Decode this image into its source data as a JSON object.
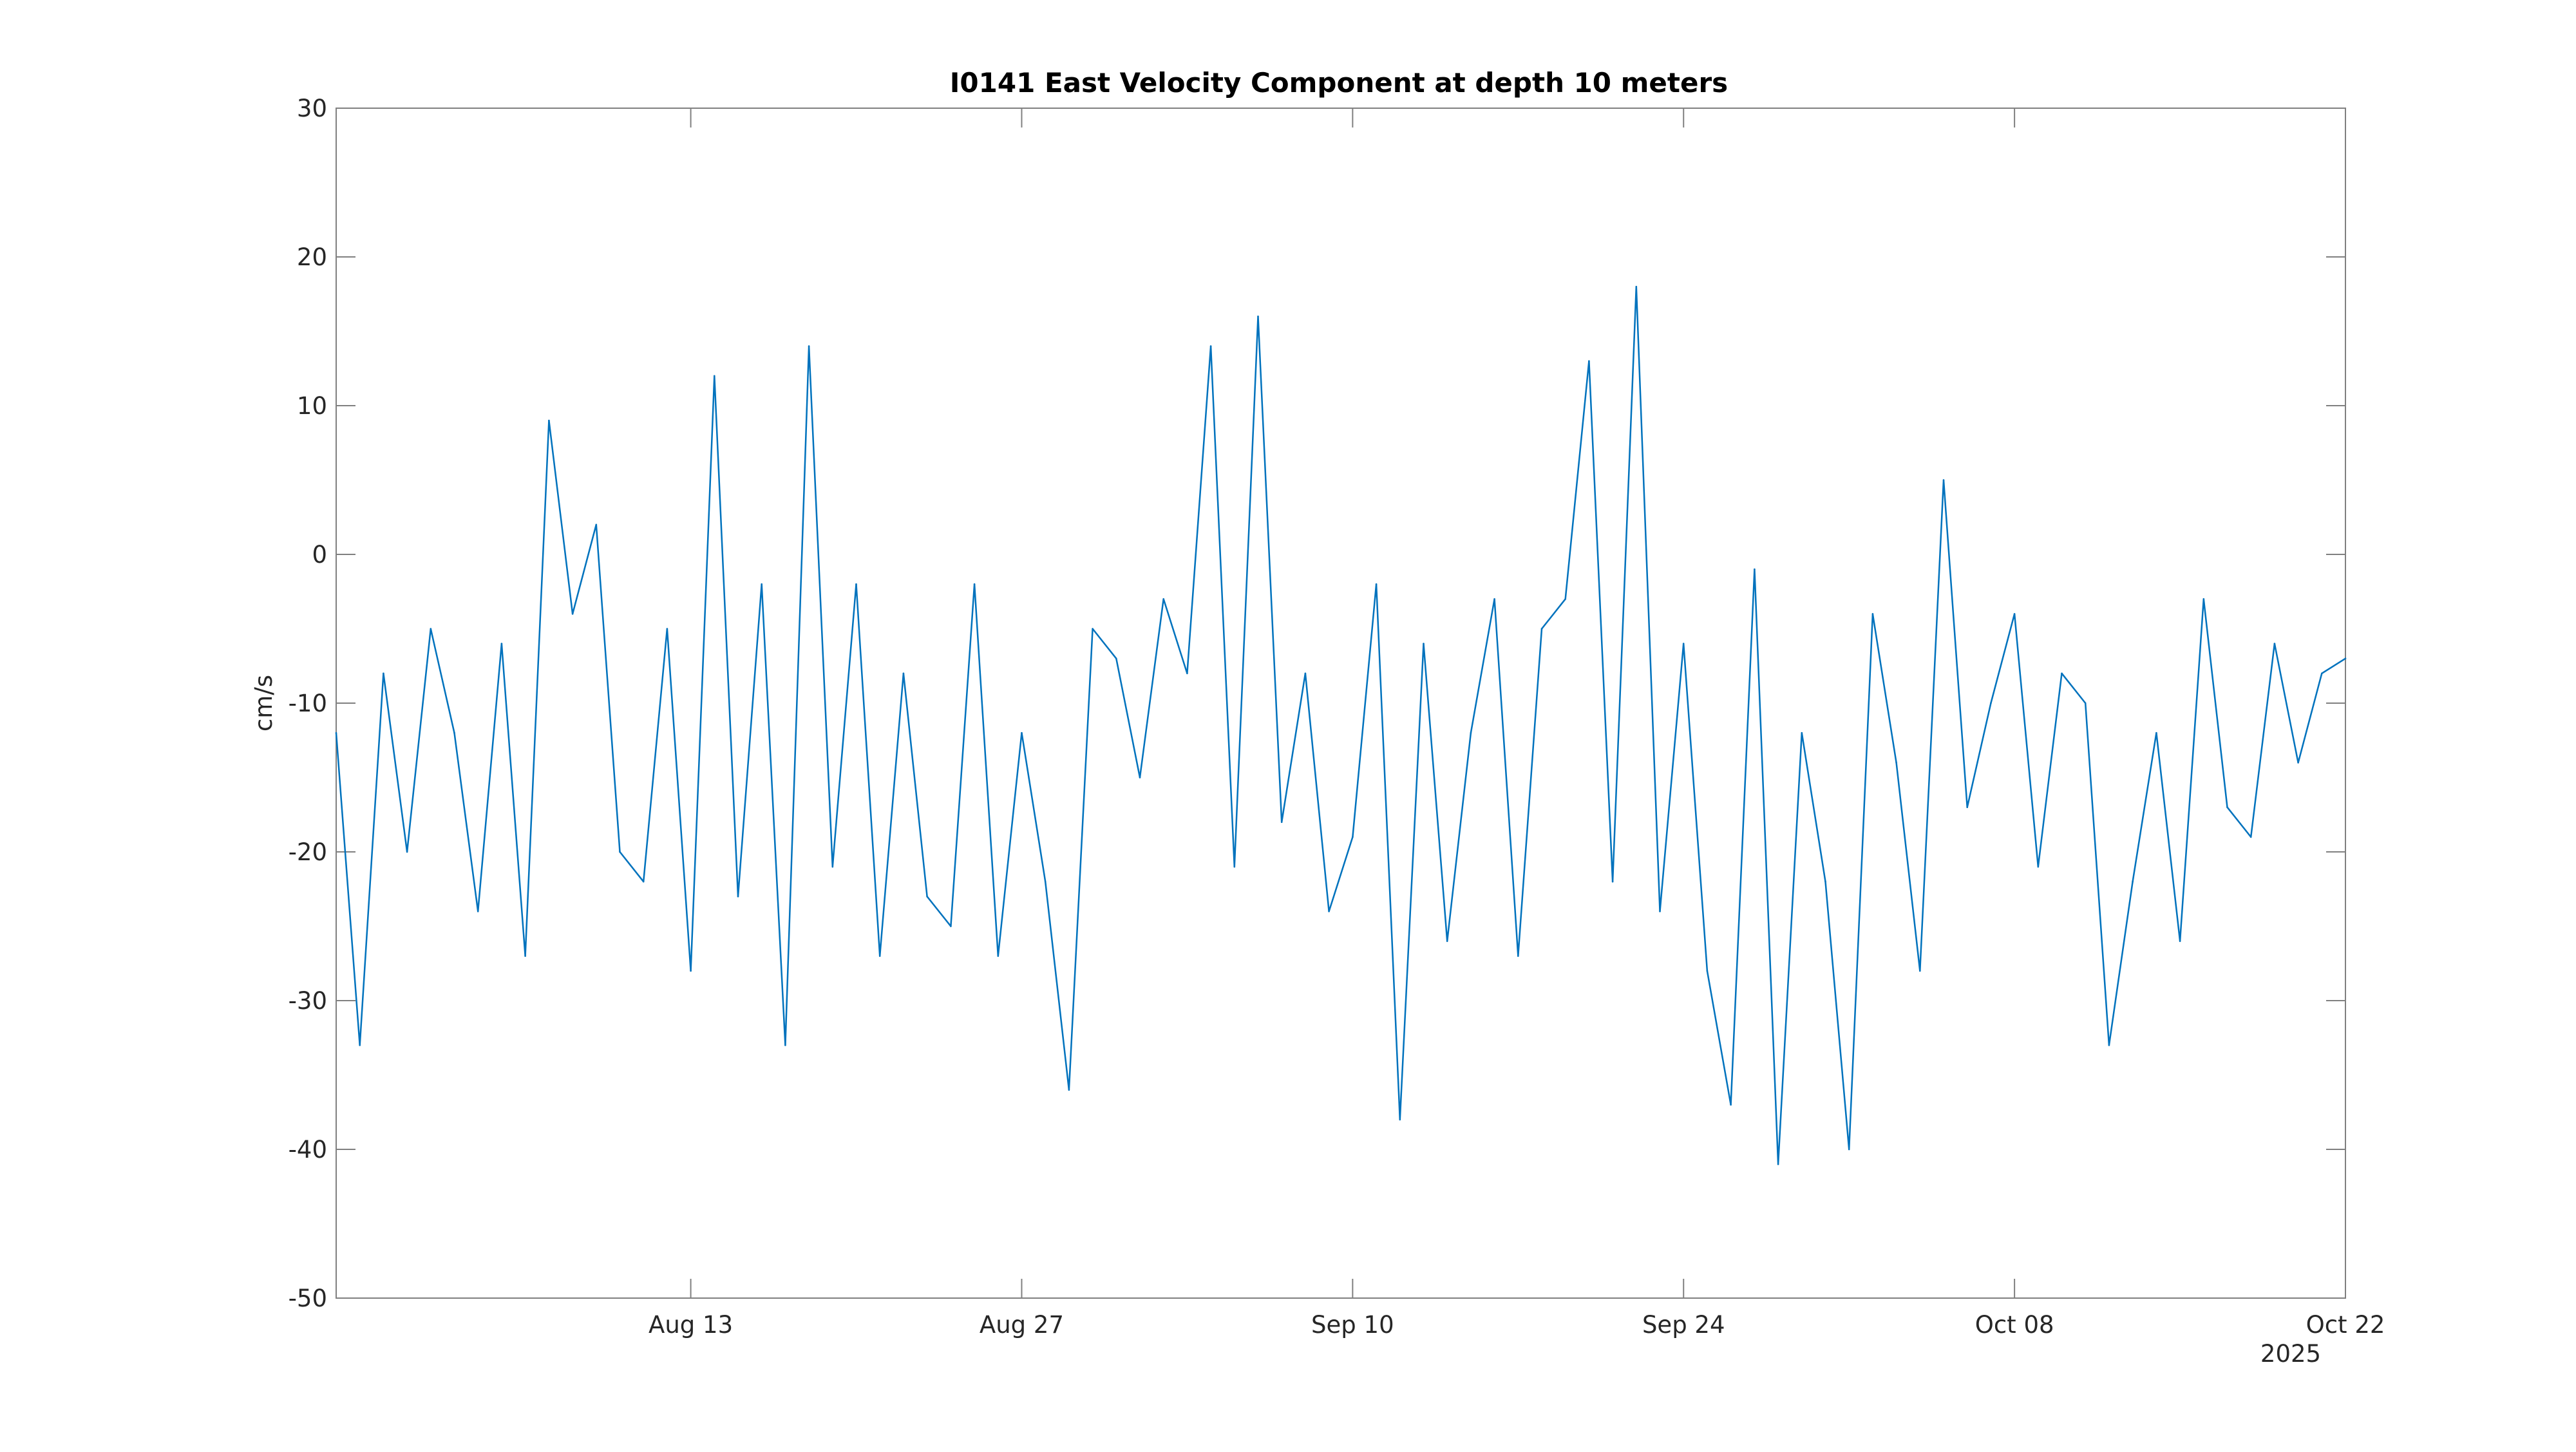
{
  "chart_data": {
    "type": "line",
    "title": "I0141 East Velocity Component at depth 10 meters",
    "xlabel": "",
    "ylabel": "cm/s",
    "xlim": [
      "2025-07-29",
      "2025-10-22"
    ],
    "ylim": [
      -50,
      30
    ],
    "x_ticks": [
      {
        "date": "2025-08-13",
        "label": "Aug 13"
      },
      {
        "date": "2025-08-27",
        "label": "Aug 27"
      },
      {
        "date": "2025-09-10",
        "label": "Sep 10"
      },
      {
        "date": "2025-09-24",
        "label": "Sep 24"
      },
      {
        "date": "2025-10-08",
        "label": "Oct 08"
      },
      {
        "date": "2025-10-22",
        "label": "Oct 22"
      }
    ],
    "x_year_label": "2025",
    "y_ticks": [
      30,
      20,
      10,
      0,
      -10,
      -20,
      -30,
      -40,
      -50
    ],
    "grid": false,
    "line_color": "#0072BD",
    "series": [
      {
        "x": [
          "2025-07-29",
          "2025-07-30",
          "2025-07-31",
          "2025-08-01",
          "2025-08-02",
          "2025-08-03",
          "2025-08-04",
          "2025-08-05",
          "2025-08-06",
          "2025-08-07",
          "2025-08-08",
          "2025-08-09",
          "2025-08-10",
          "2025-08-11",
          "2025-08-12",
          "2025-08-13",
          "2025-08-14",
          "2025-08-15",
          "2025-08-16",
          "2025-08-17",
          "2025-08-18",
          "2025-08-19",
          "2025-08-20",
          "2025-08-21",
          "2025-08-22",
          "2025-08-23",
          "2025-08-24",
          "2025-08-25",
          "2025-08-26",
          "2025-08-27",
          "2025-08-28",
          "2025-08-29",
          "2025-08-30",
          "2025-08-31",
          "2025-09-01",
          "2025-09-02",
          "2025-09-03",
          "2025-09-04",
          "2025-09-05",
          "2025-09-06",
          "2025-09-07",
          "2025-09-08",
          "2025-09-09",
          "2025-09-10",
          "2025-09-11",
          "2025-09-12",
          "2025-09-13",
          "2025-09-14",
          "2025-09-15",
          "2025-09-16",
          "2025-09-17",
          "2025-09-18",
          "2025-09-19",
          "2025-09-20",
          "2025-09-21",
          "2025-09-22",
          "2025-09-23",
          "2025-09-24",
          "2025-09-25",
          "2025-09-26",
          "2025-09-27",
          "2025-09-28",
          "2025-09-29",
          "2025-09-30",
          "2025-10-01",
          "2025-10-02",
          "2025-10-03",
          "2025-10-04",
          "2025-10-05",
          "2025-10-06",
          "2025-10-07",
          "2025-10-08",
          "2025-10-09",
          "2025-10-10",
          "2025-10-11",
          "2025-10-12",
          "2025-10-13",
          "2025-10-14",
          "2025-10-15",
          "2025-10-16",
          "2025-10-17",
          "2025-10-18",
          "2025-10-19",
          "2025-10-20",
          "2025-10-21",
          "2025-10-22"
        ],
        "values": [
          -12,
          -33,
          -8,
          -20,
          -5,
          -12,
          -24,
          -6,
          -27,
          9,
          -4,
          2,
          -20,
          -22,
          -5,
          -28,
          12,
          -23,
          -2,
          -33,
          14,
          -21,
          -2,
          -27,
          -8,
          -23,
          -25,
          -2,
          -27,
          -12,
          -22,
          -36,
          -5,
          -7,
          -15,
          -3,
          -8,
          14,
          -21,
          16,
          -18,
          -8,
          -24,
          -19,
          -2,
          -38,
          -6,
          -26,
          -12,
          -3,
          -27,
          -5,
          -3,
          13,
          -22,
          18,
          -24,
          -6,
          -28,
          -37,
          -1,
          -41,
          -12,
          -22,
          -40,
          -4,
          -14,
          -28,
          5,
          -17,
          -10,
          -4,
          -21,
          -8,
          -10,
          -33,
          -22,
          -12,
          -26,
          -3,
          -17,
          -19,
          -6,
          -14,
          -8,
          -7
        ]
      }
    ]
  }
}
